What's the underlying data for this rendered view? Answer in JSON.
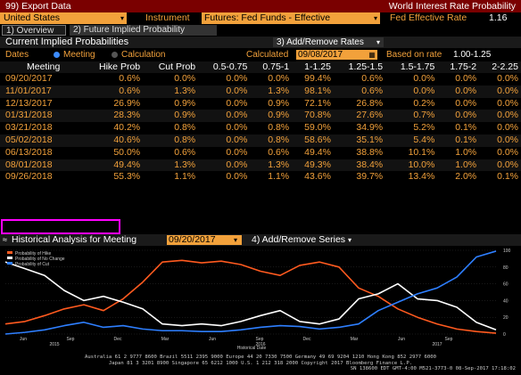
{
  "title_bar": {
    "export": "99) Export Data",
    "app_title": "World Interest Rate Probability"
  },
  "selector": {
    "country": "United States",
    "instrument_label": "Instrument",
    "instrument_value": "Futures: Fed Funds - Effective",
    "eff_rate_label": "Fed Effective Rate",
    "eff_rate_value": "1.16"
  },
  "tabs": [
    {
      "label": "1) Overview"
    },
    {
      "label": "2) Future Implied Probability"
    }
  ],
  "section": {
    "title": "Current Implied Probabilities",
    "add_rates": "3) Add/Remove Rates"
  },
  "controls": {
    "dates_label": "Dates",
    "meeting": "Meeting",
    "calculation": "Calculation",
    "calculated_label": "Calculated",
    "calculated_value": "09/08/2017",
    "based_label": "Based on rate",
    "based_value": "1.00-1.25"
  },
  "table": {
    "headers": [
      "Meeting",
      "Hike Prob",
      "Cut Prob",
      "0.5-0.75",
      "0.75-1",
      "1-1.25",
      "1.25-1.5",
      "1.5-1.75",
      "1.75-2",
      "2-2.25"
    ],
    "rows": [
      [
        "09/20/2017",
        "0.6%",
        "0.0%",
        "0.0%",
        "0.0%",
        "99.4%",
        "0.6%",
        "0.0%",
        "0.0%",
        "0.0%"
      ],
      [
        "11/01/2017",
        "0.6%",
        "1.3%",
        "0.0%",
        "1.3%",
        "98.1%",
        "0.6%",
        "0.0%",
        "0.0%",
        "0.0%"
      ],
      [
        "12/13/2017",
        "26.9%",
        "0.9%",
        "0.0%",
        "0.9%",
        "72.1%",
        "26.8%",
        "0.2%",
        "0.0%",
        "0.0%"
      ],
      [
        "01/31/2018",
        "28.3%",
        "0.9%",
        "0.0%",
        "0.9%",
        "70.8%",
        "27.6%",
        "0.7%",
        "0.0%",
        "0.0%"
      ],
      [
        "03/21/2018",
        "40.2%",
        "0.8%",
        "0.0%",
        "0.8%",
        "59.0%",
        "34.9%",
        "5.2%",
        "0.1%",
        "0.0%"
      ],
      [
        "05/02/2018",
        "40.6%",
        "0.8%",
        "0.0%",
        "0.8%",
        "58.6%",
        "35.1%",
        "5.4%",
        "0.1%",
        "0.0%"
      ],
      [
        "06/13/2018",
        "50.0%",
        "0.6%",
        "0.0%",
        "0.6%",
        "49.4%",
        "38.8%",
        "10.1%",
        "1.0%",
        "0.0%"
      ],
      [
        "08/01/2018",
        "49.4%",
        "1.3%",
        "0.0%",
        "1.3%",
        "49.3%",
        "38.4%",
        "10.0%",
        "1.0%",
        "0.0%"
      ],
      [
        "09/26/2018",
        "55.3%",
        "1.1%",
        "0.0%",
        "1.1%",
        "43.6%",
        "39.7%",
        "13.4%",
        "2.0%",
        "0.1%"
      ]
    ]
  },
  "history": {
    "label": "Historical Analysis for Meeting",
    "meeting_value": "09/20/2017",
    "add_series": "4) Add/Remove Series"
  },
  "legend": {
    "hike": "Probability of Hike",
    "nochange": "Probability of No Change",
    "cut": "Probability of Cut"
  },
  "chart_data": {
    "type": "line",
    "xlabel": "Historical Date",
    "ylim": [
      0,
      100
    ],
    "y_ticks": [
      "100",
      "80",
      "60",
      "40",
      "20",
      "0"
    ],
    "x_ticks": [
      "Jun",
      "Sep",
      "Dec",
      "Mar",
      "Jun",
      "Sep",
      "Dec",
      "Mar",
      "Jun",
      "Sep"
    ],
    "year_labels": [
      "2015",
      "2016",
      "2017"
    ],
    "series": [
      {
        "name": "Probability of Hike",
        "color": "#ff5a1f",
        "x": [
          0,
          4,
          8,
          12,
          16,
          20,
          24,
          28,
          32,
          36,
          40,
          44,
          48,
          52,
          56,
          60,
          64,
          68,
          72,
          76,
          80,
          84,
          88,
          92,
          96,
          100
        ],
        "values": [
          12,
          15,
          22,
          30,
          35,
          28,
          42,
          62,
          86,
          88,
          85,
          87,
          83,
          75,
          70,
          82,
          86,
          80,
          55,
          45,
          30,
          20,
          12,
          6,
          3,
          1
        ]
      },
      {
        "name": "Probability of No Change",
        "color": "#ffffff",
        "x": [
          0,
          4,
          8,
          12,
          16,
          20,
          24,
          28,
          32,
          36,
          40,
          44,
          48,
          52,
          56,
          60,
          64,
          68,
          72,
          76,
          80,
          84,
          88,
          92,
          96,
          100
        ],
        "values": [
          86,
          78,
          70,
          52,
          40,
          45,
          38,
          30,
          12,
          10,
          12,
          10,
          15,
          22,
          28,
          15,
          12,
          18,
          42,
          48,
          60,
          42,
          40,
          32,
          14,
          5
        ]
      },
      {
        "name": "Probability of Cut",
        "color": "#2e7fff",
        "x": [
          0,
          4,
          8,
          12,
          16,
          20,
          24,
          28,
          32,
          36,
          40,
          44,
          48,
          52,
          56,
          60,
          64,
          68,
          72,
          76,
          80,
          84,
          88,
          92,
          96,
          100
        ],
        "values": [
          0,
          2,
          5,
          10,
          14,
          8,
          10,
          6,
          4,
          4,
          3,
          3,
          5,
          8,
          10,
          9,
          6,
          8,
          12,
          28,
          38,
          48,
          55,
          68,
          92,
          99
        ]
      }
    ]
  },
  "footer": {
    "line1": "Australia 61 2 9777 8600 Brazil 5511 2395 9000 Europe 44 20 7330 7500 Germany 49 69 9204 1210 Hong Kong 852 2977 6000",
    "line2": "Japan 81 3 3201 8900       Singapore 65 6212 1000       U.S. 1 212 318 2000            Copyright 2017 Bloomberg Finance L.P.",
    "line3": "SN 138600 EDT  GMT-4:00 M521-3773-0 08-Sep-2017 17:18:02"
  }
}
